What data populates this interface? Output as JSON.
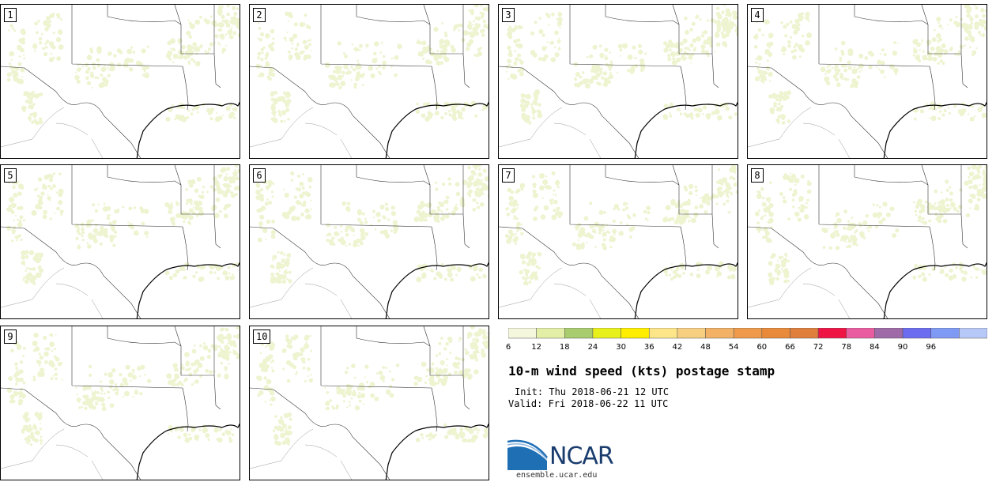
{
  "panels": [
    {
      "label": "1"
    },
    {
      "label": "2"
    },
    {
      "label": "3"
    },
    {
      "label": "4"
    },
    {
      "label": "5"
    },
    {
      "label": "6"
    },
    {
      "label": "7"
    },
    {
      "label": "8"
    },
    {
      "label": "9"
    },
    {
      "label": "10"
    }
  ],
  "colorbar": {
    "ticks": [
      "6",
      "12",
      "18",
      "24",
      "30",
      "36",
      "42",
      "48",
      "54",
      "60",
      "66",
      "72",
      "78",
      "84",
      "90",
      "96"
    ],
    "colors": [
      "#f5f7dc",
      "#e3efa6",
      "#a9cc6e",
      "#e8f01c",
      "#ffee00",
      "#fde68a",
      "#f7cf80",
      "#f2b165",
      "#ee9a4a",
      "#e88a3a",
      "#df7f3b",
      "#ee1444",
      "#ea5ca0",
      "#9e6aa8",
      "#6c6cf0",
      "#7f9af5",
      "#b6c8f7"
    ]
  },
  "title": "10-m wind speed (kts) postage stamp",
  "init": "Init: Thu 2018-06-21 12 UTC",
  "valid": "Valid: Fri 2018-06-22 11 UTC",
  "logo": {
    "text": "NCAR",
    "url_text": "ensemble.ucar.edu"
  }
}
